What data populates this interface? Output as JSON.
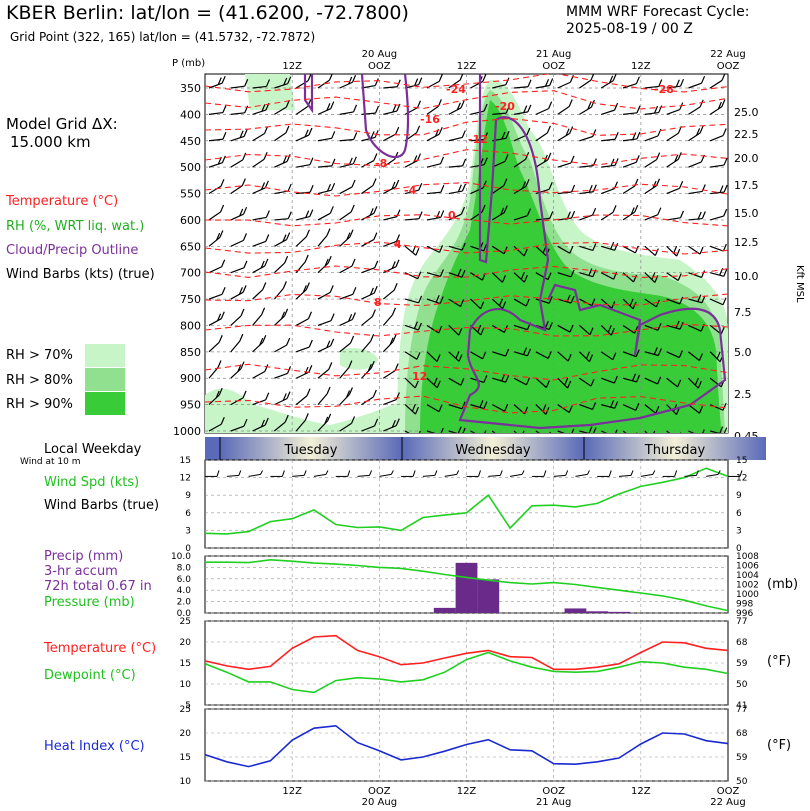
{
  "header": {
    "title": "KBER Berlin:  lat/lon = (41.6200, -72.7800)",
    "subtitle": "Grid Point (322, 165) lat/lon = (41.5732, -72.7872)",
    "cycle_line1": "MMM WRF Forecast Cycle:",
    "cycle_line2": "2025-08-19 / 00  Z"
  },
  "grid": {
    "line1": "Model Grid ΔX:",
    "line2": "15.000 km"
  },
  "legend": {
    "items": [
      {
        "label": "Temperature (°C)",
        "color": "#ff2020"
      },
      {
        "label": "RH (%, WRT liq. wat.)",
        "color": "#20b020"
      },
      {
        "label": "Cloud/Precip Outline",
        "color": "#7a2f9a"
      },
      {
        "label": "Wind Barbs (kts) (true)",
        "color": "#000000"
      }
    ],
    "rh": [
      {
        "label": "RH > 70%",
        "color": "#c8f5c8"
      },
      {
        "label": "RH > 80%",
        "color": "#90e090"
      },
      {
        "label": "RH > 90%",
        "color": "#38cc38"
      }
    ]
  },
  "time_axis": {
    "top_labels": [
      "12Z",
      "20 Aug\nOOZ",
      "12Z",
      "21 Aug\nOOZ",
      "12Z",
      "22 Aug\nOOZ"
    ],
    "bottom_labels": [
      "12Z",
      "OOZ\n20 Aug",
      "12Z",
      "OOZ\n21 Aug",
      "12Z",
      "OOZ\n22 Aug"
    ],
    "weekdays": [
      "Tuesday",
      "Wednesday",
      "Thursday"
    ]
  },
  "sounding": {
    "p_axis_label": "P (mb)",
    "height_label": "Kft MSL",
    "pressure_ticks": [
      350,
      400,
      450,
      500,
      550,
      600,
      650,
      700,
      750,
      800,
      850,
      900,
      950,
      1000
    ],
    "height_ticks": [
      "25.0",
      "22.5",
      "20.0",
      "17.5",
      "15.0",
      "12.5",
      "10.0",
      "7.5",
      "5.0",
      "2.5",
      "0.45"
    ],
    "temp_labels": [
      "-24",
      "-28",
      "-20",
      "-16",
      "-12",
      "-8",
      "-4",
      "0",
      "4",
      "8",
      "12"
    ]
  },
  "panels": {
    "wind": {
      "title": "Local Weekday",
      "sub": "Wind at 10 m",
      "l1": "Wind Spd (kts)",
      "l2": "Wind Barbs (true)"
    },
    "precip": {
      "l1": "Precip (mm)",
      "l2": "3-hr accum",
      "l3": "72h total 0.67 in",
      "l4": "Pressure (mb)",
      "unit": "(mb)"
    },
    "temp": {
      "l1": "Temperature (°C)",
      "l2": "Dewpoint (°C)",
      "unit": "(°F)"
    },
    "heat": {
      "l1": "Heat Index (°C)",
      "unit": "(°F)"
    }
  },
  "chart_data": [
    {
      "type": "line",
      "title": "Wind Spd (kts)",
      "x_hours": [
        0,
        3,
        6,
        9,
        12,
        15,
        18,
        21,
        24,
        27,
        30,
        33,
        36,
        39,
        42,
        45,
        48,
        51,
        54,
        57,
        60,
        63,
        66,
        69,
        72
      ],
      "ylim": [
        0,
        15
      ],
      "yticks": [
        0,
        3,
        6,
        9,
        12,
        15
      ],
      "series": [
        {
          "name": "Wind Spd (kts)",
          "color": "#20d020",
          "values": [
            2.5,
            2.4,
            2.8,
            4.5,
            5,
            6.5,
            4,
            3.5,
            3.6,
            3.0,
            5.2,
            5.6,
            6.0,
            9.0,
            3.4,
            7.2,
            7.3,
            7.0,
            7.6,
            9.2,
            10.5,
            11.2,
            12.0,
            13.6,
            12.2
          ]
        }
      ]
    },
    {
      "type": "bar",
      "title": "Precip (mm) / Pressure (mb)",
      "x_hours": [
        0,
        3,
        6,
        9,
        12,
        15,
        18,
        21,
        24,
        27,
        30,
        33,
        36,
        39,
        42,
        45,
        48,
        51,
        54,
        57,
        60,
        63,
        66,
        69,
        72
      ],
      "ylim": [
        0,
        10
      ],
      "yticks": [
        0,
        2,
        4,
        6,
        8,
        10
      ],
      "precip_mm": [
        0,
        0,
        0,
        0,
        0,
        0,
        0,
        0,
        0,
        0,
        0,
        0.9,
        8.8,
        5.9,
        0,
        0,
        0,
        0.8,
        0.3,
        0.2,
        0,
        0,
        0,
        0,
        0
      ],
      "pressure_ticks": [
        996,
        998,
        1000,
        1002,
        1004,
        1006,
        1008
      ],
      "series": [
        {
          "name": "Pressure (mb)",
          "color": "#20d020",
          "values": [
            1006.7,
            1006.7,
            1006.6,
            1007.2,
            1006.9,
            1006.5,
            1006.3,
            1006.0,
            1005.6,
            1005.4,
            1004.8,
            1004.1,
            1003.5,
            1002.9,
            1002.4,
            1002.1,
            1002.4,
            1002.0,
            1001.4,
            1000.8,
            1000.2,
            999.6,
            998.7,
            997.5,
            996.5
          ]
        }
      ]
    },
    {
      "type": "line",
      "title": "Temperature / Dewpoint (°C)",
      "x_hours": [
        0,
        3,
        6,
        9,
        12,
        15,
        18,
        21,
        24,
        27,
        30,
        33,
        36,
        39,
        42,
        45,
        48,
        51,
        54,
        57,
        60,
        63,
        66,
        69,
        72
      ],
      "ylim": [
        5,
        25
      ],
      "yticks": [
        5,
        10,
        15,
        20,
        25
      ],
      "right_ticks_f": [
        41,
        50,
        59,
        68,
        77
      ],
      "series": [
        {
          "name": "Temperature (°C)",
          "color": "#ff2020",
          "values": [
            15.5,
            14.3,
            13.5,
            14.2,
            18.5,
            21.2,
            21.5,
            18.0,
            16.5,
            14.6,
            15.0,
            16.2,
            17.3,
            18.0,
            16.5,
            16.3,
            13.5,
            13.5,
            14.0,
            14.8,
            17.5,
            20.0,
            19.8,
            18.5,
            18.0
          ]
        },
        {
          "name": "Dewpoint (°C)",
          "color": "#20d020",
          "values": [
            14.8,
            12.8,
            10.5,
            10.5,
            8.7,
            8.0,
            10.8,
            11.5,
            11.2,
            10.5,
            11.0,
            12.8,
            15.8,
            17.5,
            15.5,
            14.0,
            13.0,
            12.8,
            13.0,
            14.0,
            15.3,
            15.0,
            14.0,
            13.5,
            12.5
          ]
        }
      ]
    },
    {
      "type": "line",
      "title": "Heat Index (°C)",
      "x_hours": [
        0,
        3,
        6,
        9,
        12,
        15,
        18,
        21,
        24,
        27,
        30,
        33,
        36,
        39,
        42,
        45,
        48,
        51,
        54,
        57,
        60,
        63,
        66,
        69,
        72
      ],
      "ylim": [
        10,
        25
      ],
      "yticks": [
        10,
        15,
        20,
        25
      ],
      "right_ticks_f": [
        50,
        59,
        68,
        77
      ],
      "series": [
        {
          "name": "Heat Index (°C)",
          "color": "#1a2ad0",
          "values": [
            15.5,
            14.0,
            13.0,
            14.2,
            18.5,
            21.0,
            21.5,
            18.0,
            16.3,
            14.4,
            15.0,
            16.2,
            17.6,
            18.6,
            16.5,
            16.3,
            13.6,
            13.5,
            14.0,
            14.8,
            17.7,
            20.0,
            19.8,
            18.4,
            17.8
          ]
        }
      ]
    }
  ]
}
